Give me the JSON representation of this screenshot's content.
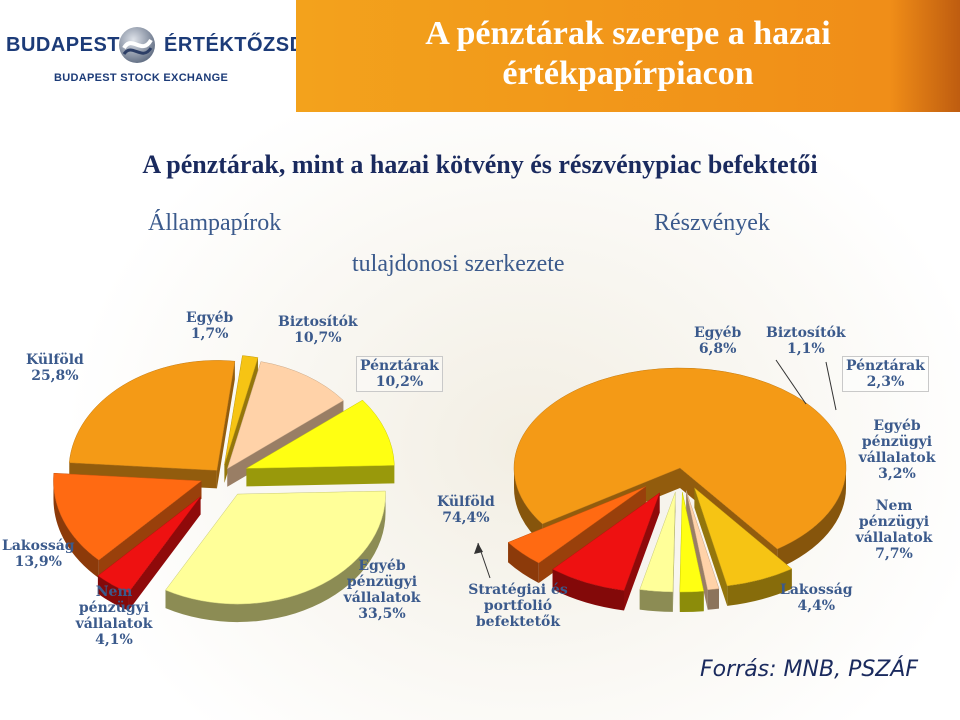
{
  "header": {
    "logo_left": "BUDAPESTI",
    "logo_right": "ÉRTÉKTŐZSDE",
    "logo_sub": "BUDAPEST STOCK EXCHANGE",
    "title": "A pénztárak szerepe a hazai értékpapírpiacon"
  },
  "subtitle": "A pénztárak, mint a hazai kötvény és részvénypiac befektetői",
  "headings": {
    "left": "Állampapírok",
    "right": "Részvények",
    "center": "tulajdonosi szerkezete"
  },
  "colors": {
    "title_band": "#f3a21c",
    "text_blue": "#3b5a8c",
    "dark_blue": "#1a2a5e"
  },
  "chart_data": [
    {
      "type": "pie",
      "title": "Állampapírok",
      "slices": [
        {
          "label": "Külföld",
          "value": 25.8,
          "value_label": "25,8%",
          "color": "#f49a16"
        },
        {
          "label": "Egyéb",
          "value": 1.7,
          "value_label": "1,7%",
          "color": "#f6c414"
        },
        {
          "label": "Biztosítók",
          "value": 10.7,
          "value_label": "10,7%",
          "color": "#ffd2a8"
        },
        {
          "label": "Pénztárak",
          "value": 10.2,
          "value_label": "10,2%",
          "color": "#ffff12"
        },
        {
          "label": "Egyéb pénzügyi vállalatok",
          "value": 33.5,
          "value_label": "33,5%",
          "color": "#ffff99"
        },
        {
          "label": "Nem pénzügyi vállalatok",
          "value": 4.1,
          "value_label": "4,1%",
          "color": "#ee1111"
        },
        {
          "label": "Lakosság",
          "value": 13.9,
          "value_label": "13,9%",
          "color": "#ff6a12"
        }
      ]
    },
    {
      "type": "pie",
      "title": "Részvények",
      "slices": [
        {
          "label": "Külföld",
          "value": 74.4,
          "value_label": "74,4%",
          "color": "#f49a16"
        },
        {
          "label": "Egyéb",
          "value": 6.8,
          "value_label": "6,8%",
          "color": "#f6c414"
        },
        {
          "label": "Biztosítók",
          "value": 1.1,
          "value_label": "1,1%",
          "color": "#ffd2a8"
        },
        {
          "label": "Pénztárak",
          "value": 2.3,
          "value_label": "2,3%",
          "color": "#ffff12"
        },
        {
          "label": "Egyéb pénzügyi vállalatok",
          "value": 3.2,
          "value_label": "3,2%",
          "color": "#ffff99"
        },
        {
          "label": "Nem pénzügyi vállalatok",
          "value": 7.7,
          "value_label": "7,7%",
          "color": "#ee1111"
        },
        {
          "label": "Lakosság",
          "value": 4.4,
          "value_label": "4,4%",
          "color": "#ff6a12"
        }
      ]
    }
  ],
  "annotation": "Stratégiai és portfolió befektetők",
  "source": "Forrás: MNB, PSZÁF"
}
